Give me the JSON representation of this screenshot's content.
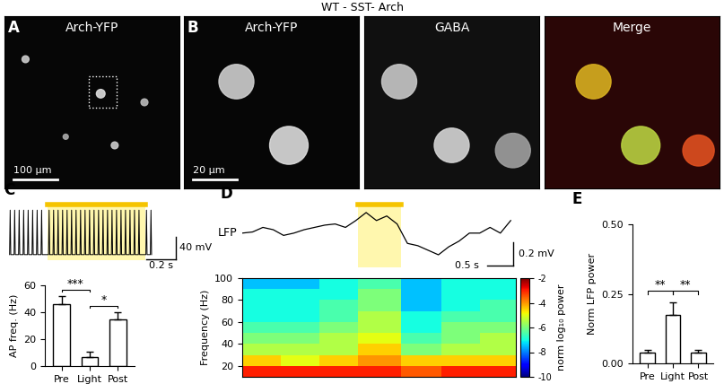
{
  "title": "WT - SST- Arch",
  "images": [
    {
      "panel": "A",
      "label": "Arch-YFP",
      "scale_bar": "100 µm"
    },
    {
      "panel": "B",
      "label": "Arch-YFP",
      "scale_bar": "20 µm"
    },
    {
      "label": "GABA"
    },
    {
      "label": "Merge"
    }
  ],
  "chart_data": [
    {
      "type": "spike_trace",
      "panel": "C",
      "spike_times": [
        0.02,
        0.05,
        0.08,
        0.11,
        0.14,
        0.17,
        0.2,
        0.23,
        0.28,
        0.31,
        0.34,
        0.37,
        0.4,
        0.43,
        0.46,
        0.49,
        0.52,
        0.55,
        0.58,
        0.61,
        0.64,
        0.67,
        0.7,
        0.73,
        0.76,
        0.79,
        0.82,
        0.85,
        0.88,
        0.93,
        0.96
      ],
      "baseline": -60,
      "peak": 20,
      "light": [
        0.27,
        0.92
      ],
      "xlim": [
        0,
        1.15
      ],
      "ylim": [
        -70,
        30
      ],
      "color": "#000000",
      "tick_labels": false,
      "scale_bars": {
        "x": {
          "value": 0.2,
          "label": "0.2 s"
        },
        "y": {
          "value": 40,
          "label": "40 mV"
        }
      }
    },
    {
      "type": "bar",
      "categories": [
        "Pre",
        "Light",
        "Post"
      ],
      "values": [
        46,
        7,
        35
      ],
      "errors": [
        6,
        4,
        5
      ],
      "ylabel": "AP freq. (Hz)",
      "ylim": [
        0,
        60
      ],
      "yticks": [
        0,
        20,
        40,
        60
      ],
      "color": "#ffffff",
      "significance": [
        {
          "pair": [
            0,
            1
          ],
          "label": "***"
        },
        {
          "pair": [
            1,
            2
          ],
          "label": "*"
        }
      ]
    },
    {
      "type": "line",
      "panel": "D",
      "label": "LFP",
      "x": [
        0,
        0.2,
        0.4,
        0.6,
        0.8,
        1.0,
        1.2,
        1.4,
        1.6,
        1.8,
        2.0,
        2.2,
        2.4,
        2.6,
        2.8,
        3.0,
        3.2,
        3.4,
        3.6,
        3.8,
        4.0,
        4.2,
        4.4,
        4.6,
        4.8,
        5.0,
        5.2
      ],
      "values": [
        0,
        0.01,
        0.05,
        0.03,
        -0.02,
        0,
        0.03,
        0.05,
        0.07,
        0.08,
        0.05,
        0.11,
        0.18,
        0.11,
        0.15,
        0.08,
        -0.09,
        -0.11,
        -0.15,
        -0.19,
        -0.12,
        -0.07,
        0,
        0,
        0.05,
        0,
        0.11
      ],
      "light": [
        2.25,
        3.08
      ],
      "xlim": [
        0,
        5.3
      ],
      "ylim": [
        -0.3,
        0.25
      ],
      "color": "#000000",
      "tick_labels": false,
      "scale_bars": {
        "x": {
          "value": 0.5,
          "label": "0.5 s"
        },
        "y": {
          "value": 0.2,
          "label": "0.2 mV"
        }
      }
    },
    {
      "type": "heatmap",
      "x_edges": [
        0,
        0.75,
        1.5,
        2.25,
        3.08,
        3.85,
        4.6,
        5.3
      ],
      "y_edges": [
        10,
        20,
        30,
        40,
        50,
        60,
        70,
        80,
        90,
        100
      ],
      "cells": [
        [
          -3,
          -3,
          -3,
          -3,
          -3.5,
          -3,
          -3
        ],
        [
          -4.5,
          -5,
          -4.5,
          -4,
          -4.5,
          -4.5,
          -4.5
        ],
        [
          -5.5,
          -5.5,
          -5.5,
          -4.5,
          -6,
          -5.5,
          -5.5
        ],
        [
          -6,
          -6,
          -5.5,
          -5,
          -6.5,
          -6,
          -5.5
        ],
        [
          -6.5,
          -6.5,
          -6,
          -5.5,
          -7,
          -6,
          -6
        ],
        [
          -7,
          -7,
          -6.5,
          -5.5,
          -7,
          -6.5,
          -6.5
        ],
        [
          -7,
          -7,
          -6.5,
          -6,
          -7.5,
          -7,
          -6.5
        ],
        [
          -7,
          -7,
          -7,
          -6,
          -7.5,
          -7,
          -7
        ],
        [
          -7.5,
          -7.5,
          -7,
          -6.5,
          -7.5,
          -7,
          -7
        ]
      ],
      "xlim": [
        0,
        5.3
      ],
      "ylim": [
        10,
        100
      ],
      "yticks": [
        20,
        40,
        60,
        80,
        100
      ],
      "ylabel": "Frequency (Hz)",
      "tick_labels": "y",
      "colorbar": {
        "range": [
          -10,
          -2
        ],
        "ticks": [
          -2,
          -4,
          -6,
          -8,
          -10
        ],
        "label": "norm log₁₀ power"
      }
    },
    {
      "type": "bar",
      "panel": "E",
      "categories": [
        "Pre",
        "Light",
        "Post"
      ],
      "values": [
        0.04,
        0.175,
        0.04
      ],
      "errors": [
        0.01,
        0.045,
        0.008
      ],
      "ylabel": "Norm LFP power",
      "ylim": [
        0,
        0.5
      ],
      "yticks": [
        {
          "value": 0,
          "label": "0.00"
        },
        0.25,
        {
          "value": 0.5,
          "label": "0.50"
        }
      ],
      "color": "#ffffff",
      "significance": [
        {
          "pair": [
            0,
            1
          ],
          "label": "**"
        },
        {
          "pair": [
            1,
            2
          ],
          "label": "**"
        }
      ]
    }
  ]
}
